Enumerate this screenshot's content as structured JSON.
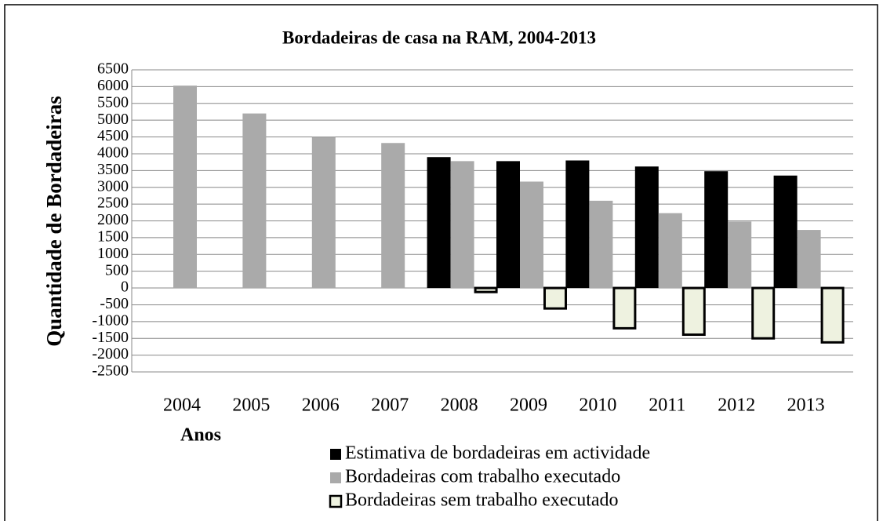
{
  "chart_data": {
    "type": "bar",
    "title": "Bordadeiras de casa na RAM, 2004-2013",
    "x_label": "Anos",
    "y_label": "Quantidade de Bordadeiras",
    "categories": [
      "2004",
      "2005",
      "2006",
      "2007",
      "2008",
      "2009",
      "2010",
      "2011",
      "2012",
      "2013"
    ],
    "series": [
      {
        "name": "Estimativa de bordadeiras em actividade",
        "color": "#000000",
        "values": [
          null,
          null,
          null,
          null,
          3900,
          3780,
          3800,
          3620,
          3480,
          3350
        ]
      },
      {
        "name": "Bordadeiras com trabalho executado",
        "color": "#aaaaaa",
        "values": [
          6030,
          5200,
          4500,
          4320,
          3780,
          3170,
          2600,
          2230,
          1980,
          1730
        ]
      },
      {
        "name": "Bordadeiras sem trabalho executado",
        "color": "#eef2e0",
        "values": [
          null,
          null,
          null,
          null,
          -120,
          -610,
          -1200,
          -1390,
          -1500,
          -1620
        ]
      }
    ],
    "ylim": [
      -2500,
      6500
    ],
    "yticks": [
      -2500,
      -2000,
      -1500,
      -1000,
      -500,
      0,
      500,
      1000,
      1500,
      2000,
      2500,
      3000,
      3500,
      4000,
      4500,
      5000,
      5500,
      6000,
      6500
    ],
    "grid": true
  }
}
